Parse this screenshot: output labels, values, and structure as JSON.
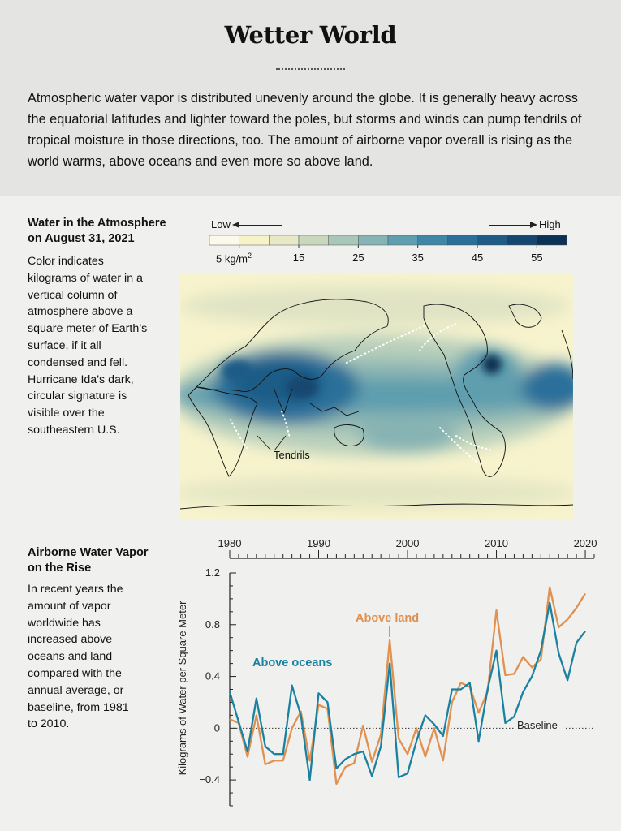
{
  "title": "Wetter World",
  "intro": "Atmospheric water vapor is distributed unevenly around the globe. It is generally heavy across the equatorial latitudes and lighter toward the poles, but storms and winds can pump tendrils of tropical moisture in those directions, too. The amount of airborne vapor overall is rising as the world warms, above oceans and even more so above land.",
  "map_section": {
    "title_line1": "Water in the Atmosphere",
    "title_line2": "on August 31, 2021",
    "body": [
      "Color indicates",
      "kilograms of water in a",
      "vertical column of",
      "atmosphere above a",
      "square meter of Earth’s",
      "surface, if it all",
      "condensed and fell.",
      "Hurricane Ida’s dark,",
      "circular signature is",
      "visible over the",
      "southeastern U.S."
    ],
    "scale_low": "Low",
    "scale_high": "High",
    "scale_unit_label": "5 kg/m",
    "scale_unit_sup": "2",
    "scale_ticks": [
      "15",
      "25",
      "35",
      "45",
      "55"
    ],
    "scale_colors": [
      "#fbf9ea",
      "#f7f3c8",
      "#e6e8c6",
      "#c9d8bd",
      "#a8c7b8",
      "#86b3b3",
      "#5f9eae",
      "#3f87a6",
      "#2a709a",
      "#1e5b87",
      "#14466f",
      "#0b3155"
    ],
    "annotation": "Tendrils"
  },
  "chart_section": {
    "title_line1": "Airborne Water Vapor",
    "title_line2": "on the Rise",
    "body": [
      "In recent years the",
      "amount of vapor",
      "worldwide has",
      "increased above",
      "oceans and land",
      "compared with the",
      "annual average, or",
      "baseline, from 1981",
      "to 2010."
    ]
  },
  "chart_data": {
    "type": "line",
    "x": [
      1980,
      1981,
      1982,
      1983,
      1984,
      1985,
      1986,
      1987,
      1988,
      1989,
      1990,
      1991,
      1992,
      1993,
      1994,
      1995,
      1996,
      1997,
      1998,
      1999,
      2000,
      2001,
      2002,
      2003,
      2004,
      2005,
      2006,
      2007,
      2008,
      2009,
      2010,
      2011,
      2012,
      2013,
      2014,
      2015,
      2016,
      2017,
      2018,
      2019,
      2020,
      2021
    ],
    "series": [
      {
        "name": "Above oceans",
        "color": "#1a82a0",
        "values": [
          0.28,
          0.05,
          -0.18,
          0.23,
          -0.14,
          -0.2,
          -0.2,
          0.33,
          0.1,
          -0.4,
          0.27,
          0.2,
          -0.31,
          -0.24,
          -0.2,
          -0.18,
          -0.37,
          -0.14,
          0.5,
          -0.38,
          -0.35,
          -0.1,
          0.1,
          0.03,
          -0.06,
          0.3,
          0.3,
          0.35,
          -0.1,
          0.3,
          0.6,
          0.04,
          0.09,
          0.28,
          0.4,
          0.6,
          0.97,
          0.58,
          0.37,
          0.66,
          0.75,
          null
        ]
      },
      {
        "name": "Above land",
        "color": "#e0904f",
        "values": [
          0.07,
          0.04,
          -0.22,
          0.1,
          -0.28,
          -0.25,
          -0.25,
          0.0,
          0.13,
          -0.25,
          0.18,
          0.15,
          -0.43,
          -0.3,
          -0.27,
          0.02,
          -0.26,
          -0.05,
          0.68,
          -0.08,
          -0.2,
          0.0,
          -0.22,
          0.0,
          -0.25,
          0.2,
          0.35,
          0.32,
          0.12,
          0.28,
          0.91,
          0.41,
          0.42,
          0.55,
          0.47,
          0.53,
          1.09,
          0.78,
          0.84,
          0.93,
          1.04,
          null
        ]
      }
    ],
    "x_ticks": [
      "1980",
      "1990",
      "2000",
      "2010",
      "2020"
    ],
    "y_ticks": [
      "1.2",
      "0.8",
      "0.4",
      "0",
      "−0.4"
    ],
    "ylabel": "Kilograms of Water per Square Meter",
    "baseline_label": "Baseline",
    "xlim": [
      1980,
      2021
    ],
    "ylim": [
      -0.6,
      1.2
    ]
  }
}
